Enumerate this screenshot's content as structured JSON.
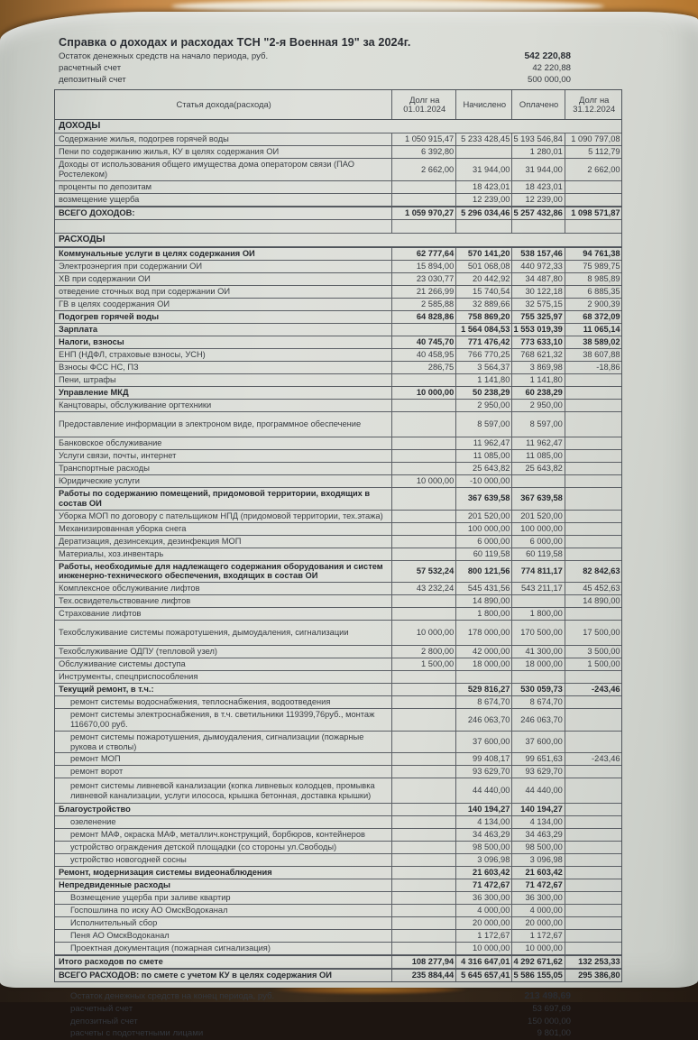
{
  "colors": {
    "paper": "#d9dcd6",
    "wood": "#c08344",
    "ink": "#33373d",
    "border": "#5b5f65"
  },
  "header": {
    "title": "Справка о доходах и расходах ТСН \"2-я Военная 19\" за 2024г.",
    "opening_balance": {
      "label": "Остаток денежных средств на начало периода, руб.",
      "value": "542 220,88"
    },
    "accounts": [
      {
        "label": "расчетный счет",
        "value": "42 220,88"
      },
      {
        "label": "депозитный счет",
        "value": "500 000,00"
      }
    ]
  },
  "table": {
    "columns": [
      "Статья дохода(расхода)",
      "Долг на 01.01.2024",
      "Начислено",
      "Оплачено",
      "Долг на 31.12.2024"
    ],
    "rows": [
      {
        "label": "ДОХОДЫ",
        "section": true
      },
      {
        "label": "Содержание жилья, подогрев горячей воды",
        "cells": [
          "1 050 915,47",
          "5 233 428,45",
          "5 193 546,84",
          "1 090 797,08"
        ]
      },
      {
        "label": "Пени по содержанию жилья, КУ в целях содержания ОИ",
        "cells": [
          "6 392,80",
          "",
          "1 280,01",
          "5 112,79"
        ]
      },
      {
        "label": "Доходы от использования общего имущества дома оператором связи (ПАО Ростелеком)",
        "cells": [
          "2 662,00",
          "31 944,00",
          "31 944,00",
          "2 662,00"
        ]
      },
      {
        "label": "проценты по депозитам",
        "cells": [
          "",
          "18 423,01",
          "18 423,01",
          ""
        ]
      },
      {
        "label": "возмещение ущерба",
        "cells": [
          "",
          "12 239,00",
          "12 239,00",
          ""
        ]
      },
      {
        "label": "ВСЕГО ДОХОДОВ:",
        "bold": true,
        "strong": true,
        "cells": [
          "1 059 970,27",
          "5 296 034,46",
          "5 257 432,86",
          "1 098 571,87"
        ]
      },
      {
        "label": "",
        "spacer": true,
        "cells": [
          "",
          "",
          "",
          ""
        ]
      },
      {
        "label": "РАСХОДЫ",
        "section": true
      },
      {
        "label": "Коммунальные услуги в целях содержания ОИ",
        "bold": true,
        "strong": true,
        "cells": [
          "62 777,64",
          "570 141,20",
          "538 157,46",
          "94 761,38"
        ]
      },
      {
        "label": "Электроэнергия при содержании ОИ",
        "cells": [
          "15 894,00",
          "501 068,08",
          "440 972,33",
          "75 989,75"
        ]
      },
      {
        "label": "ХВ при содержании ОИ",
        "cells": [
          "23 030,77",
          "20 442,92",
          "34 487,80",
          "8 985,89"
        ]
      },
      {
        "label": "отведение сточных вод при содержании ОИ",
        "cells": [
          "21 266,99",
          "15 740,54",
          "30 122,18",
          "6 885,35"
        ]
      },
      {
        "label": "ГВ в целях соодержания ОИ",
        "cells": [
          "2 585,88",
          "32 889,66",
          "32 575,15",
          "2 900,39"
        ]
      },
      {
        "label": "Подогрев горячей воды",
        "bold": true,
        "cells": [
          "64 828,86",
          "758 869,20",
          "755 325,97",
          "68 372,09"
        ]
      },
      {
        "label": "Зарплата",
        "bold": true,
        "cells": [
          "",
          "1 564 084,53",
          "1 553 019,39",
          "11 065,14"
        ]
      },
      {
        "label": "Налоги, взносы",
        "bold": true,
        "cells": [
          "40 745,70",
          "771 476,42",
          "773 633,10",
          "38 589,02"
        ]
      },
      {
        "label": "ЕНП (НДФЛ, страховые взносы, УСН)",
        "cells": [
          "40 458,95",
          "766 770,25",
          "768 621,32",
          "38 607,88"
        ]
      },
      {
        "label": "Взносы ФСС НС, ПЗ",
        "cells": [
          "286,75",
          "3 564,37",
          "3 869,98",
          "-18,86"
        ]
      },
      {
        "label": "Пени, штрафы",
        "cells": [
          "",
          "1 141,80",
          "1 141,80",
          ""
        ]
      },
      {
        "label": "Управление МКД",
        "bold": true,
        "cells": [
          "10 000,00",
          "50 238,29",
          "60 238,29",
          ""
        ]
      },
      {
        "label": "Канцтовары, обслуживание оргтехники",
        "cells": [
          "",
          "2 950,00",
          "2 950,00",
          ""
        ]
      },
      {
        "label": "Предоставление информации в электроном виде, программное обеспечение",
        "tall": true,
        "cells": [
          "",
          "8 597,00",
          "8 597,00",
          ""
        ]
      },
      {
        "label": "Банковское обслуживание",
        "cells": [
          "",
          "11 962,47",
          "11 962,47",
          ""
        ]
      },
      {
        "label": "Услуги связи, почты, интернет",
        "cells": [
          "",
          "11 085,00",
          "11 085,00",
          ""
        ]
      },
      {
        "label": "Транспортные расходы",
        "cells": [
          "",
          "25 643,82",
          "25 643,82",
          ""
        ]
      },
      {
        "label": "Юридические услуги",
        "cells": [
          "10 000,00",
          "-10 000,00",
          "",
          ""
        ]
      },
      {
        "label": "Работы по содержанию помещений, придомовой территории, входящих в состав ОИ",
        "bold": true,
        "cells": [
          "",
          "367 639,58",
          "367 639,58",
          ""
        ]
      },
      {
        "label": "Уборка МОП по договору с пательщиком НПД (придомовой территории, тех.этажа)",
        "cells": [
          "",
          "201 520,00",
          "201 520,00",
          ""
        ]
      },
      {
        "label": "Механизированная уборка снега",
        "cells": [
          "",
          "100 000,00",
          "100 000,00",
          ""
        ]
      },
      {
        "label": "Дератизация, дезинсекция, дезинфекция МОП",
        "cells": [
          "",
          "6 000,00",
          "6 000,00",
          ""
        ]
      },
      {
        "label": "Материалы, хоз.инвентарь",
        "cells": [
          "",
          "60 119,58",
          "60 119,58",
          ""
        ]
      },
      {
        "label": "Работы, необходимые для надлежащего содержания оборудования и систем инженерно-технического обеспечения,  входящих в состав ОИ",
        "bold": true,
        "cells": [
          "57 532,24",
          "800 121,56",
          "774 811,17",
          "82 842,63"
        ]
      },
      {
        "label": "Комплексное обслуживание лифтов",
        "cells": [
          "43 232,24",
          "545 431,56",
          "543 211,17",
          "45 452,63"
        ]
      },
      {
        "label": "Тех.освидетельствование лифтов",
        "cells": [
          "",
          "14 890,00",
          "",
          "14 890,00"
        ]
      },
      {
        "label": "Страхование лифтов",
        "cells": [
          "",
          "1 800,00",
          "1 800,00",
          ""
        ]
      },
      {
        "label": "Техобслуживание системы пожаротушения, дымоудаления, сигнализации",
        "tall": true,
        "cells": [
          "10 000,00",
          "178 000,00",
          "170 500,00",
          "17 500,00"
        ]
      },
      {
        "label": "Техобслуживание ОДПУ (тепловой узел)",
        "cells": [
          "2 800,00",
          "42 000,00",
          "41 300,00",
          "3 500,00"
        ]
      },
      {
        "label": "Обслуживание системы доступа",
        "cells": [
          "1 500,00",
          "18 000,00",
          "18 000,00",
          "1 500,00"
        ]
      },
      {
        "label": "Инструменты, спецприспособления",
        "cells": [
          "",
          "",
          "",
          ""
        ]
      },
      {
        "label": "Текущий ремонт, в т.ч.:",
        "bold": true,
        "cells": [
          "",
          "529 816,27",
          "530 059,73",
          "-243,46"
        ]
      },
      {
        "label": "ремонт системы водоснабжения, теплоснабжения, водоотведения",
        "indent": true,
        "cells": [
          "",
          "8 674,70",
          "8 674,70",
          ""
        ]
      },
      {
        "label": "ремонт системы электроснабжения, в т.ч. светильники 119399,76руб., монтаж 116670,00 руб.",
        "indent": true,
        "cells": [
          "",
          "246 063,70",
          "246 063,70",
          ""
        ]
      },
      {
        "label": "ремонт системы пожаротушения, дымоудаления, сигнализации (пожарные рукова и стволы)",
        "indent": true,
        "cells": [
          "",
          "37 600,00",
          "37 600,00",
          ""
        ]
      },
      {
        "label": "ремонт МОП",
        "indent": true,
        "cells": [
          "",
          "99 408,17",
          "99 651,63",
          "-243,46"
        ]
      },
      {
        "label": "ремонт ворот",
        "indent": true,
        "cells": [
          "",
          "93 629,70",
          "93 629,70",
          ""
        ]
      },
      {
        "label": "ремонт системы ливневой канализации (копка ливневых колодцев, промывка ливневой канализации, услуги илососа, крышка бетонная, доставка крышки)",
        "indent": true,
        "tall": true,
        "cells": [
          "",
          "44 440,00",
          "44 440,00",
          ""
        ]
      },
      {
        "label": "Благоустройство",
        "bold": true,
        "cells": [
          "",
          "140 194,27",
          "140 194,27",
          ""
        ]
      },
      {
        "label": "озеленение",
        "indent": true,
        "cells": [
          "",
          "4 134,00",
          "4 134,00",
          ""
        ]
      },
      {
        "label": "ремонт МАФ, окраска МАФ, металлич.конструкций, борбюров, контейнеров",
        "indent": true,
        "cells": [
          "",
          "34 463,29",
          "34 463,29",
          ""
        ]
      },
      {
        "label": "устройство ограждения детской площадки (со стороны ул.Свободы)",
        "indent": true,
        "cells": [
          "",
          "98 500,00",
          "98 500,00",
          ""
        ]
      },
      {
        "label": "устройство новогодней сосны",
        "indent": true,
        "cells": [
          "",
          "3 096,98",
          "3 096,98",
          ""
        ]
      },
      {
        "label": "Ремонт, модернизация системы видеонаблюдения",
        "bold": true,
        "cells": [
          "",
          "21 603,42",
          "21 603,42",
          ""
        ]
      },
      {
        "label": "Непредвиденные расходы",
        "bold": true,
        "cells": [
          "",
          "71 472,67",
          "71 472,67",
          ""
        ]
      },
      {
        "label": "Возмещение ущерба при заливе квартир",
        "indent": true,
        "cells": [
          "",
          "36 300,00",
          "36 300,00",
          ""
        ]
      },
      {
        "label": "Госпошлина по иску АО ОмскВодоканал",
        "indent": true,
        "cells": [
          "",
          "4 000,00",
          "4 000,00",
          ""
        ]
      },
      {
        "label": "Исполнительный сбор",
        "indent": true,
        "cells": [
          "",
          "20 000,00",
          "20 000,00",
          ""
        ]
      },
      {
        "label": "Пеня АО ОмскВодоканал",
        "indent": true,
        "cells": [
          "",
          "1 172,67",
          "1 172,67",
          ""
        ]
      },
      {
        "label": "Проектная документация (пожарная сигнализация)",
        "indent": true,
        "cells": [
          "",
          "10 000,00",
          "10 000,00",
          ""
        ]
      },
      {
        "label": "Итого расходов по смете",
        "bold": true,
        "strong": true,
        "cells": [
          "108 277,94",
          "4 316 647,01",
          "4 292 671,62",
          "132 253,33"
        ]
      },
      {
        "label": "ВСЕГО РАСХОДОВ: по смете с учетом КУ в целях содержания ОИ",
        "bold": true,
        "strong": true,
        "cells": [
          "235 884,44",
          "5 645 657,41",
          "5 586 155,05",
          "295 386,80"
        ]
      }
    ]
  },
  "footer": {
    "closing_balance": {
      "label": "Остаток денежных средств на конец периода, руб.",
      "value": "213 498,69"
    },
    "accounts": [
      {
        "label": "расчетный счет",
        "value": "53 697,69"
      },
      {
        "label": "депозитный счет",
        "value": "150 000,00"
      },
      {
        "label": "расчеты с подотчетными лицами",
        "value": "9 801,00"
      }
    ]
  }
}
